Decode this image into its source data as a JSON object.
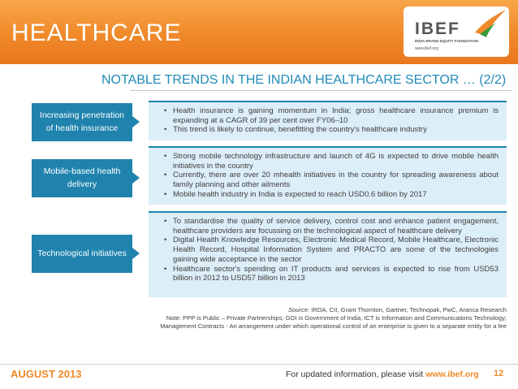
{
  "header": {
    "title": "HEALTHCARE",
    "logo_text": "IBEF",
    "logo_subtitle": "INDIA BRAND EQUITY FOUNDATION",
    "logo_url": "www.ibef.org",
    "brand_color": "#f0892a"
  },
  "page_title": "NOTABLE TRENDS IN THE INDIAN HEALTHCARE SECTOR … (2/2)",
  "trends": [
    {
      "label": "Increasing penetration of health insurance",
      "points": [
        "Health insurance is gaining momentum in India; gross healthcare insurance premium is expanding at a CAGR of 39 per cent over FY06–10",
        "This trend is likely to continue, benefitting the country's healthcare industry"
      ]
    },
    {
      "label": "Mobile-based health delivery",
      "points": [
        "Strong mobile technology infrastructure and launch of 4G is expected to drive mobile health initiatives in the country",
        "Currently, there are over 20 mhealth initiatives in the country for spreading awareness about family planning and other ailments",
        "Mobile health industry in India is expected to reach USD0.6 billion by 2017"
      ]
    },
    {
      "label": "Technological initiatives",
      "points": [
        "To standardise the quality of service delivery, control cost and enhance patient engagement, healthcare providers are focussing on the technological aspect of healthcare delivery",
        "Digital Health Knowledge Resources, Electronic Medical Record, Mobile Healthcare, Electronic Health Record, Hospital Information System and PRACTO are some of the technologies gaining wide acceptance in the sector",
        "Healthcare sector's spending on IT products and services is expected to rise from USD53 billion in 2012 to USD57 billion in 2013"
      ]
    }
  ],
  "source": {
    "label": "Source:",
    "text": " IRDA, CII, Grant Thornton, Gartner, Technopak, PwC, Aranca Research",
    "note": "Note: PPP is Public – Private Partnerships; GOI is Government of India; ICT is Information and Communications Technology; Management Contracts - An arrangement under which operational control of an enterprise is given to a separate entity for a fee"
  },
  "footer": {
    "date": "AUGUST 2013",
    "info_prefix": "For updated information, please visit ",
    "info_url": "www.ibef.org",
    "page_number": "12"
  }
}
